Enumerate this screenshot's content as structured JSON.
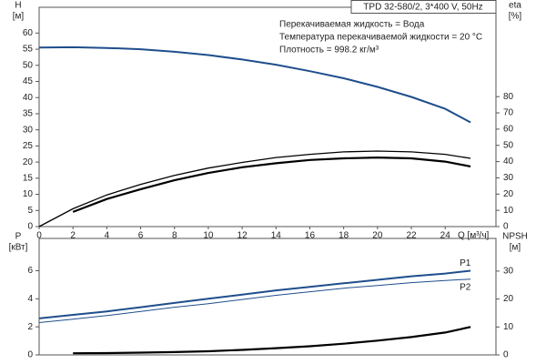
{
  "chart_data": [
    {
      "type": "line",
      "title": "TPD 32-580/2, 3*400 V, 50Hz",
      "annotations": [
        "Перекачиваемая жидкость = Вода",
        "Температура перекачиваемой жидкости = 20 °C",
        "Плотность = 998.2 кг/м³"
      ],
      "y_label": "H",
      "y_unit": "[м]",
      "y2_label": "eta",
      "y2_unit": "[%]",
      "x_label": "Q [м³/ч]",
      "x": [
        0,
        2,
        4,
        6,
        8,
        10,
        12,
        14,
        16,
        18,
        20,
        22,
        24,
        25.5
      ],
      "xlim": [
        0,
        27
      ],
      "xticks": [
        0,
        2,
        4,
        6,
        8,
        10,
        12,
        14,
        16,
        18,
        20,
        22,
        24
      ],
      "ylim": [
        0,
        68
      ],
      "yticks": [
        0,
        5,
        10,
        15,
        20,
        25,
        30,
        35,
        40,
        45,
        50,
        55,
        60
      ],
      "y2lim": [
        0,
        135
      ],
      "y2ticks": [
        0,
        10,
        20,
        30,
        40,
        50,
        60,
        70,
        80
      ],
      "series": [
        {
          "color": "#1f4e8c",
          "values": [
            55.5,
            55.6,
            55.4,
            55,
            54.2,
            53.2,
            51.8,
            50.2,
            48.2,
            46,
            43.3,
            40.2,
            36.5,
            32.3
          ]
        },
        {
          "color": "#000000",
          "axis": "y2",
          "values": [
            0,
            11,
            19.5,
            26,
            31.5,
            36,
            39.5,
            42.5,
            44.5,
            46,
            46.5,
            46,
            44.5,
            42
          ]
        },
        {
          "color": "#000000",
          "axis": "y2",
          "values": [
            null,
            9,
            17,
            23,
            28.5,
            33,
            36.5,
            39,
            41,
            42,
            42.5,
            42,
            40,
            37
          ]
        }
      ]
    },
    {
      "type": "line",
      "y_label": "P",
      "y_unit": "[кВт]",
      "y2_label": "NPSH",
      "y2_unit": "[м]",
      "x": [
        0,
        2,
        4,
        6,
        8,
        10,
        12,
        14,
        16,
        18,
        20,
        22,
        24,
        25.5
      ],
      "xlim": [
        0,
        27
      ],
      "ylim": [
        0,
        8.3
      ],
      "yticks": [
        0,
        2,
        4,
        6
      ],
      "y2lim": [
        0,
        41.7
      ],
      "y2ticks": [
        0,
        10,
        20,
        30
      ],
      "series": [
        {
          "name": "P1",
          "color": "#1f4e8c",
          "values": [
            2.6,
            2.85,
            3.1,
            3.4,
            3.7,
            4.0,
            4.3,
            4.6,
            4.85,
            5.1,
            5.35,
            5.6,
            5.8,
            6.0
          ]
        },
        {
          "name": "P2",
          "color": "#1f4e8c",
          "values": [
            2.3,
            2.55,
            2.8,
            3.1,
            3.4,
            3.65,
            3.95,
            4.25,
            4.5,
            4.75,
            4.95,
            5.15,
            5.3,
            5.4
          ]
        },
        {
          "color": "#000000",
          "axis": "y2",
          "values": [
            null,
            0.6,
            0.65,
            0.8,
            1,
            1.3,
            1.8,
            2.4,
            3.1,
            4,
            5.1,
            6.4,
            8,
            10
          ]
        }
      ]
    }
  ]
}
